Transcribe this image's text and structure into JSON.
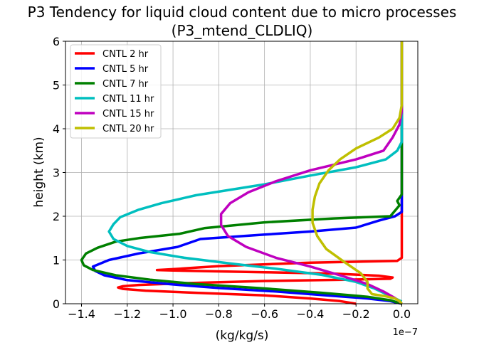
{
  "chart_data": {
    "type": "line",
    "title": "P3 Tendency for liquid cloud content due to micro processes",
    "subtitle": "(P3_mtend_CLDLIQ)",
    "xlabel": "(kg/kg/s)",
    "ylabel": "height (km)",
    "x_scale_note": "1e−7",
    "xlim": [
      -1.47,
      0.07
    ],
    "ylim": [
      0,
      6
    ],
    "x_ticks": [
      -1.4,
      -1.2,
      -1.0,
      -0.8,
      -0.6,
      -0.4,
      -0.2,
      0.0
    ],
    "x_tick_labels": [
      "−1.4",
      "−1.2",
      "−1.0",
      "−0.8",
      "−0.6",
      "−0.4",
      "−0.2",
      "0.0"
    ],
    "y_ticks": [
      0,
      1,
      2,
      3,
      4,
      5,
      6
    ],
    "y_tick_labels": [
      "0",
      "1",
      "2",
      "3",
      "4",
      "5",
      "6"
    ],
    "grid": true,
    "legend_position": "top-left",
    "series": [
      {
        "name": "CNTL 2 hr",
        "color": "#ff0000",
        "points": [
          [
            0,
            6
          ],
          [
            0,
            1.05
          ],
          [
            -0.02,
            0.98
          ],
          [
            -0.4,
            0.94
          ],
          [
            -0.8,
            0.86
          ],
          [
            -1.0,
            0.79
          ],
          [
            -1.07,
            0.77
          ],
          [
            -1.0,
            0.76
          ],
          [
            -0.6,
            0.72
          ],
          [
            -0.3,
            0.69
          ],
          [
            -0.1,
            0.64
          ],
          [
            -0.04,
            0.6
          ],
          [
            -0.05,
            0.57
          ],
          [
            -0.25,
            0.55
          ],
          [
            -0.6,
            0.52
          ],
          [
            -0.95,
            0.47
          ],
          [
            -1.15,
            0.43
          ],
          [
            -1.22,
            0.4
          ],
          [
            -1.24,
            0.37
          ],
          [
            -1.22,
            0.34
          ],
          [
            -1.12,
            0.3
          ],
          [
            -0.9,
            0.25
          ],
          [
            -0.6,
            0.19
          ],
          [
            -0.4,
            0.12
          ],
          [
            -0.27,
            0.06
          ],
          [
            -0.2,
            0.0
          ]
        ]
      },
      {
        "name": "CNTL 5 hr",
        "color": "#0000ff",
        "points": [
          [
            0,
            6
          ],
          [
            0,
            2.1
          ],
          [
            -0.03,
            2.0
          ],
          [
            -0.1,
            1.9
          ],
          [
            -0.2,
            1.74
          ],
          [
            -0.4,
            1.65
          ],
          [
            -0.6,
            1.58
          ],
          [
            -0.88,
            1.48
          ],
          [
            -0.98,
            1.3
          ],
          [
            -1.15,
            1.15
          ],
          [
            -1.28,
            1.0
          ],
          [
            -1.35,
            0.85
          ],
          [
            -1.34,
            0.75
          ],
          [
            -1.3,
            0.65
          ],
          [
            -1.2,
            0.54
          ],
          [
            -1.0,
            0.44
          ],
          [
            -0.8,
            0.36
          ],
          [
            -0.55,
            0.28
          ],
          [
            -0.35,
            0.2
          ],
          [
            -0.15,
            0.12
          ],
          [
            -0.05,
            0.06
          ],
          [
            0,
            0.0
          ]
        ]
      },
      {
        "name": "CNTL 7 hr",
        "color": "#008000",
        "points": [
          [
            0,
            6
          ],
          [
            0,
            2.5
          ],
          [
            -0.02,
            2.35
          ],
          [
            -0.01,
            2.25
          ],
          [
            -0.05,
            2.0
          ],
          [
            -0.3,
            1.95
          ],
          [
            -0.6,
            1.86
          ],
          [
            -0.86,
            1.73
          ],
          [
            -0.97,
            1.6
          ],
          [
            -1.15,
            1.5
          ],
          [
            -1.25,
            1.42
          ],
          [
            -1.33,
            1.28
          ],
          [
            -1.38,
            1.15
          ],
          [
            -1.4,
            1.0
          ],
          [
            -1.39,
            0.88
          ],
          [
            -1.35,
            0.77
          ],
          [
            -1.25,
            0.65
          ],
          [
            -1.1,
            0.55
          ],
          [
            -0.9,
            0.45
          ],
          [
            -0.6,
            0.35
          ],
          [
            -0.35,
            0.25
          ],
          [
            -0.15,
            0.16
          ],
          [
            -0.05,
            0.08
          ],
          [
            0,
            0.0
          ]
        ]
      },
      {
        "name": "CNTL 11 hr",
        "color": "#00bfbf",
        "points": [
          [
            0,
            6
          ],
          [
            0,
            3.7
          ],
          [
            -0.02,
            3.5
          ],
          [
            -0.07,
            3.3
          ],
          [
            -0.2,
            3.12
          ],
          [
            -0.4,
            2.93
          ],
          [
            -0.6,
            2.73
          ],
          [
            -0.9,
            2.48
          ],
          [
            -1.05,
            2.3
          ],
          [
            -1.15,
            2.15
          ],
          [
            -1.23,
            1.98
          ],
          [
            -1.26,
            1.82
          ],
          [
            -1.28,
            1.65
          ],
          [
            -1.26,
            1.48
          ],
          [
            -1.2,
            1.32
          ],
          [
            -1.1,
            1.18
          ],
          [
            -0.95,
            1.05
          ],
          [
            -0.75,
            0.92
          ],
          [
            -0.55,
            0.8
          ],
          [
            -0.35,
            0.66
          ],
          [
            -0.2,
            0.5
          ],
          [
            -0.12,
            0.35
          ],
          [
            -0.06,
            0.2
          ],
          [
            -0.02,
            0.1
          ],
          [
            0,
            0.05
          ]
        ]
      },
      {
        "name": "CNTL 15 hr",
        "color": "#bf00bf",
        "points": [
          [
            0,
            6
          ],
          [
            0,
            4.4
          ],
          [
            -0.01,
            4.1
          ],
          [
            -0.04,
            3.8
          ],
          [
            -0.08,
            3.5
          ],
          [
            -0.2,
            3.3
          ],
          [
            -0.4,
            3.05
          ],
          [
            -0.55,
            2.8
          ],
          [
            -0.67,
            2.55
          ],
          [
            -0.75,
            2.3
          ],
          [
            -0.79,
            2.05
          ],
          [
            -0.79,
            1.8
          ],
          [
            -0.76,
            1.55
          ],
          [
            -0.68,
            1.3
          ],
          [
            -0.55,
            1.05
          ],
          [
            -0.4,
            0.85
          ],
          [
            -0.27,
            0.65
          ],
          [
            -0.15,
            0.45
          ],
          [
            -0.08,
            0.28
          ],
          [
            -0.03,
            0.13
          ],
          [
            -0.01,
            0.05
          ],
          [
            0,
            0.0
          ]
        ]
      },
      {
        "name": "CNTL 20 hr",
        "color": "#bfbf00",
        "points": [
          [
            0,
            6
          ],
          [
            0,
            4.55
          ],
          [
            -0.01,
            4.25
          ],
          [
            -0.04,
            4.0
          ],
          [
            -0.1,
            3.8
          ],
          [
            -0.2,
            3.55
          ],
          [
            -0.27,
            3.3
          ],
          [
            -0.32,
            3.05
          ],
          [
            -0.36,
            2.75
          ],
          [
            -0.38,
            2.45
          ],
          [
            -0.39,
            2.15
          ],
          [
            -0.39,
            1.85
          ],
          [
            -0.37,
            1.55
          ],
          [
            -0.33,
            1.25
          ],
          [
            -0.25,
            0.95
          ],
          [
            -0.18,
            0.7
          ],
          [
            -0.15,
            0.5
          ],
          [
            -0.15,
            0.35
          ],
          [
            -0.13,
            0.22
          ],
          [
            -0.07,
            0.17
          ],
          [
            -0.03,
            0.12
          ],
          [
            -0.01,
            0.06
          ],
          [
            0,
            0.0
          ]
        ]
      }
    ]
  }
}
